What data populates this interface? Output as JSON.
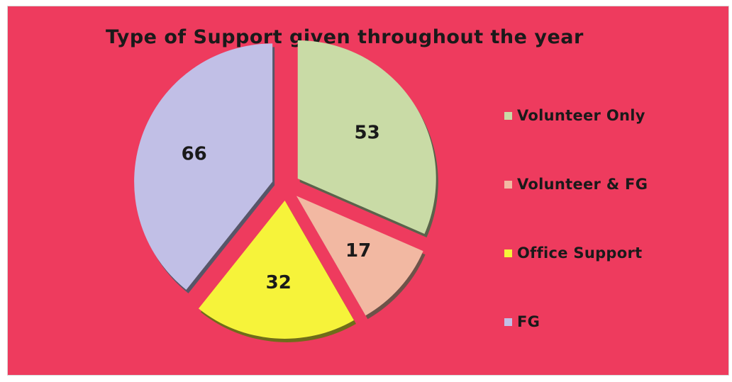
{
  "chart_data": {
    "type": "pie",
    "title": "Type of Support given  throughout the year",
    "exploded": true,
    "slices": [
      {
        "label": "Volunteer Only",
        "value": 53,
        "color": "#c9dba6"
      },
      {
        "label": "Volunteer & FG",
        "value": 17,
        "color": "#f2b8a2"
      },
      {
        "label": "Office Support",
        "value": 32,
        "color": "#f6f33a"
      },
      {
        "label": "FG",
        "value": 66,
        "color": "#c1bfe6"
      }
    ],
    "legend_position": "right"
  },
  "colors": {
    "background": "#ee3b5e",
    "text": "#1a1a1a"
  }
}
